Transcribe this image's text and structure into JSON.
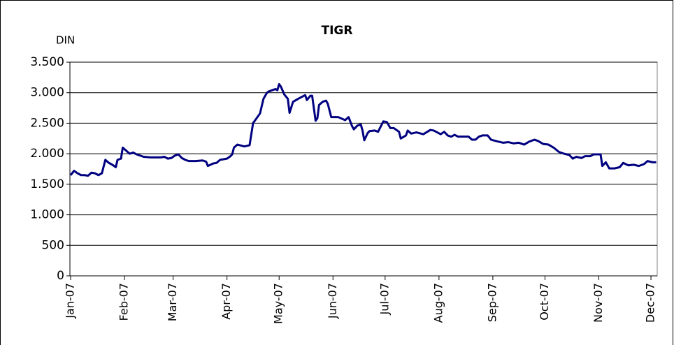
{
  "chart_data": {
    "type": "line",
    "title": "TIGR",
    "y_label": "DIN",
    "x": [
      0,
      2,
      4,
      6,
      8,
      10,
      12,
      14,
      16,
      18,
      20,
      22,
      24,
      26,
      27,
      29,
      30,
      32,
      34,
      36,
      38,
      40,
      42,
      46,
      52,
      54,
      56,
      58,
      60,
      62,
      64,
      66,
      68,
      72,
      76,
      78,
      79,
      82,
      84,
      86,
      88,
      90,
      92,
      93,
      94,
      96,
      100,
      103,
      105,
      107,
      109,
      111,
      113,
      114,
      116,
      118,
      119,
      120,
      121,
      123,
      125,
      126,
      128,
      131,
      135,
      136,
      138,
      139,
      141,
      142,
      143,
      145,
      147,
      148,
      150,
      154,
      158,
      160,
      162,
      163,
      165,
      167,
      168,
      169,
      171,
      172,
      175,
      177,
      178,
      180,
      182,
      184,
      186,
      188,
      189,
      190,
      193,
      194,
      196,
      199,
      203,
      207,
      209,
      213,
      215,
      217,
      219,
      221,
      223,
      229,
      231,
      233,
      235,
      237,
      240,
      242,
      246,
      249,
      252,
      255,
      258,
      261,
      264,
      267,
      269,
      272,
      275,
      278,
      281,
      284,
      287,
      289,
      291,
      294,
      296,
      299,
      301,
      305,
      306,
      308,
      310,
      313,
      316,
      318,
      321,
      324,
      327,
      330,
      332,
      335,
      337
    ],
    "series": [
      {
        "name": "TIGR",
        "color": "#000080",
        "values": [
          1650,
          1720,
          1680,
          1650,
          1650,
          1640,
          1690,
          1680,
          1650,
          1680,
          1900,
          1850,
          1820,
          1780,
          1900,
          1920,
          2100,
          2050,
          2000,
          2020,
          1990,
          1970,
          1950,
          1940,
          1940,
          1950,
          1920,
          1930,
          1970,
          1990,
          1930,
          1900,
          1880,
          1880,
          1890,
          1870,
          1800,
          1840,
          1850,
          1900,
          1910,
          1920,
          1960,
          1990,
          2100,
          2150,
          2120,
          2140,
          2500,
          2580,
          2660,
          2900,
          3000,
          3020,
          3040,
          3060,
          3040,
          3140,
          3100,
          2970,
          2900,
          2670,
          2850,
          2900,
          2960,
          2880,
          2950,
          2950,
          2540,
          2580,
          2800,
          2850,
          2870,
          2820,
          2600,
          2600,
          2550,
          2600,
          2450,
          2400,
          2460,
          2480,
          2380,
          2220,
          2340,
          2370,
          2380,
          2360,
          2420,
          2530,
          2520,
          2420,
          2420,
          2380,
          2360,
          2250,
          2300,
          2380,
          2330,
          2350,
          2320,
          2390,
          2380,
          2320,
          2360,
          2300,
          2280,
          2310,
          2280,
          2280,
          2230,
          2230,
          2280,
          2300,
          2300,
          2230,
          2200,
          2180,
          2190,
          2170,
          2180,
          2150,
          2200,
          2230,
          2210,
          2160,
          2150,
          2100,
          2030,
          2000,
          1980,
          1920,
          1950,
          1930,
          1960,
          1960,
          1990,
          1990,
          1800,
          1860,
          1760,
          1760,
          1780,
          1850,
          1810,
          1820,
          1800,
          1830,
          1880,
          1860,
          1860
        ]
      }
    ],
    "xlim": [
      -0.4,
      337.6
    ],
    "xticks": [
      {
        "value": 0,
        "label": "Jan-07"
      },
      {
        "value": 31,
        "label": "Feb-07"
      },
      {
        "value": 59,
        "label": "Mar-07"
      },
      {
        "value": 90,
        "label": "Apr-07"
      },
      {
        "value": 120,
        "label": "May-07"
      },
      {
        "value": 151,
        "label": "Jun-07"
      },
      {
        "value": 181,
        "label": "Jul-07"
      },
      {
        "value": 212,
        "label": "Aug-07"
      },
      {
        "value": 243,
        "label": "Sep-07"
      },
      {
        "value": 273,
        "label": "Oct-07"
      },
      {
        "value": 304,
        "label": "Nov-07"
      },
      {
        "value": 334,
        "label": "Dec-07"
      }
    ],
    "ylim": [
      0,
      3500
    ],
    "yticks": [
      0,
      500,
      {
        "value": 1000,
        "label": "1.000"
      },
      {
        "value": 1500,
        "label": "1.500"
      },
      {
        "value": 2000,
        "label": "2.000"
      },
      {
        "value": 2500,
        "label": "2.500"
      },
      {
        "value": 3000,
        "label": "3.000"
      },
      {
        "value": 3500,
        "label": "3.500"
      }
    ],
    "grid": true
  }
}
